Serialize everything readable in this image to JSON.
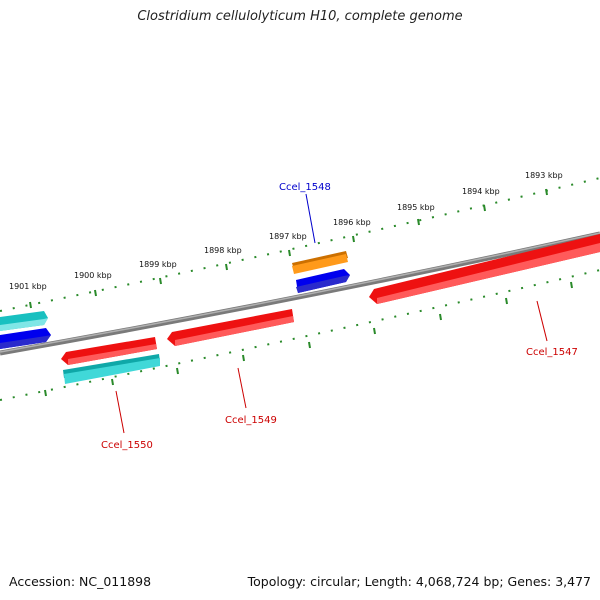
{
  "title": "Clostridium cellulolyticum H10, complete genome",
  "footer": {
    "accession": "Accession: NC_011898",
    "summary": "Topology: circular; Length: 4,068,724 bp; Genes: 3,477"
  },
  "kbp_labels": [
    "1893 kbp",
    "1894 kbp",
    "1895 kbp",
    "1896 kbp",
    "1897 kbp",
    "1898 kbp",
    "1899 kbp",
    "1900 kbp",
    "1901 kbp"
  ],
  "gene_labels": [
    {
      "text": "Ccel_1548",
      "color": "#0000cc"
    },
    {
      "text": "Ccel_1547",
      "color": "#cc0000"
    },
    {
      "text": "Ccel_1549",
      "color": "#cc0000"
    },
    {
      "text": "Ccel_1550",
      "color": "#cc0000"
    }
  ],
  "colors": {
    "backbone": "#808080",
    "ticks": "#2a8a2a",
    "red_gene": "#ee1111",
    "blue_gene": "#0000ee",
    "cyan_gene": "#1cc4c4",
    "orange_gene": "#ff8c00"
  }
}
